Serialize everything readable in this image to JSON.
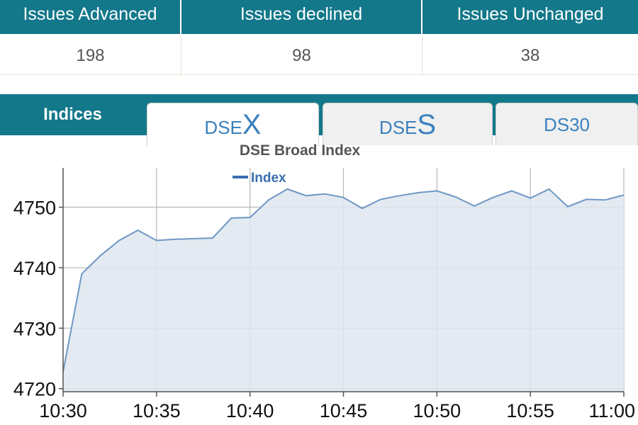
{
  "stats": {
    "headers": [
      "Issues Advanced",
      "Issues declined",
      "Issues Unchanged"
    ],
    "values": [
      "198",
      "98",
      "38"
    ]
  },
  "tabs": {
    "section_label": "Indices",
    "items": [
      {
        "prefix": "DSE",
        "suffix": "X",
        "active": true
      },
      {
        "prefix": "DSE",
        "suffix": "S",
        "active": false
      },
      {
        "prefix": "DS30",
        "suffix": "",
        "active": false
      }
    ]
  },
  "colors": {
    "header_bg": "#13788a",
    "line": "#6e97c4",
    "fill": "#dfe6f0",
    "grid": "#b8b8b8",
    "tab_text": "#3a80bd"
  },
  "chart_data": {
    "type": "area",
    "title": "DSE Broad Index",
    "legend": [
      "Index"
    ],
    "legend_position": "top-center",
    "grid": true,
    "xlabel": "",
    "ylabel": "",
    "x_ticks": [
      "10:30",
      "10:35",
      "10:40",
      "10:45",
      "10:50",
      "10:55",
      "11:00"
    ],
    "y_ticks": [
      4720,
      4730,
      4740,
      4750
    ],
    "xlim": [
      0,
      30
    ],
    "ylim": [
      4719.5,
      4756.5
    ],
    "series": [
      {
        "name": "Index",
        "x": [
          0,
          1,
          2,
          3,
          4,
          5,
          6,
          7,
          8,
          9,
          10,
          11,
          12,
          13,
          14,
          15,
          16,
          17,
          18,
          19,
          20,
          21,
          22,
          23,
          24,
          25,
          26,
          27,
          28,
          29,
          30
        ],
        "y": [
          4722.8,
          4739,
          4742,
          4744.5,
          4746.2,
          4744.5,
          4744.7,
          4744.8,
          4744.9,
          4748.2,
          4748.3,
          4751.2,
          4753,
          4751.9,
          4752.2,
          4751.6,
          4749.8,
          4751.3,
          4751.9,
          4752.4,
          4752.7,
          4751.7,
          4750.2,
          4751.6,
          4752.7,
          4751.5,
          4753,
          4750.1,
          4751.3,
          4751.2,
          4752
        ]
      }
    ]
  }
}
